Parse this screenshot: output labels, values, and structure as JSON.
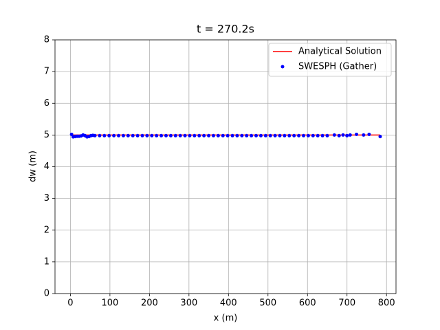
{
  "chart_data": {
    "type": "scatter",
    "title": "t = 270.2s",
    "x_label": "x (m)",
    "y_label": "dw (m)",
    "xlim": [
      -39,
      824
    ],
    "ylim": [
      0,
      8
    ],
    "xticks": [
      0,
      100,
      200,
      300,
      400,
      500,
      600,
      700,
      800
    ],
    "yticks": [
      0,
      1,
      2,
      3,
      4,
      5,
      6,
      7,
      8
    ],
    "grid": true,
    "legend": "upper right",
    "series": [
      {
        "name": "Analytical Solution",
        "color": "#ff0000",
        "style": "line",
        "x": [
          0,
          784
        ],
        "values": [
          5,
          5
        ]
      },
      {
        "name": "SWESPH (Gather)",
        "color": "#0000ff",
        "style": "points",
        "x": [
          3,
          7,
          12,
          17,
          22,
          27,
          32,
          37,
          42,
          47,
          52,
          57,
          62,
          74,
          86,
          98,
          110,
          122,
          134,
          146,
          158,
          170,
          182,
          194,
          206,
          218,
          230,
          242,
          254,
          266,
          278,
          290,
          302,
          314,
          326,
          338,
          350,
          362,
          374,
          386,
          398,
          410,
          422,
          434,
          446,
          458,
          470,
          482,
          494,
          506,
          518,
          530,
          542,
          554,
          566,
          578,
          590,
          602,
          614,
          626,
          638,
          650,
          668,
          680,
          690,
          700,
          708,
          724,
          742,
          756,
          784
        ],
        "values": [
          5.02,
          4.94,
          4.95,
          4.96,
          4.96,
          4.97,
          5.0,
          4.98,
          4.94,
          4.95,
          4.98,
          4.99,
          4.98,
          4.98,
          4.98,
          4.98,
          4.98,
          4.98,
          4.98,
          4.98,
          4.98,
          4.98,
          4.98,
          4.98,
          4.98,
          4.98,
          4.98,
          4.98,
          4.98,
          4.98,
          4.98,
          4.98,
          4.98,
          4.98,
          4.98,
          4.98,
          4.98,
          4.98,
          4.98,
          4.98,
          4.98,
          4.98,
          4.98,
          4.98,
          4.98,
          4.98,
          4.98,
          4.98,
          4.98,
          4.98,
          4.98,
          4.98,
          4.98,
          4.98,
          4.98,
          4.98,
          4.98,
          4.98,
          4.98,
          4.98,
          4.98,
          4.98,
          5.0,
          4.98,
          5.0,
          4.98,
          5.0,
          5.02,
          5.0,
          5.02,
          4.95
        ]
      }
    ]
  }
}
